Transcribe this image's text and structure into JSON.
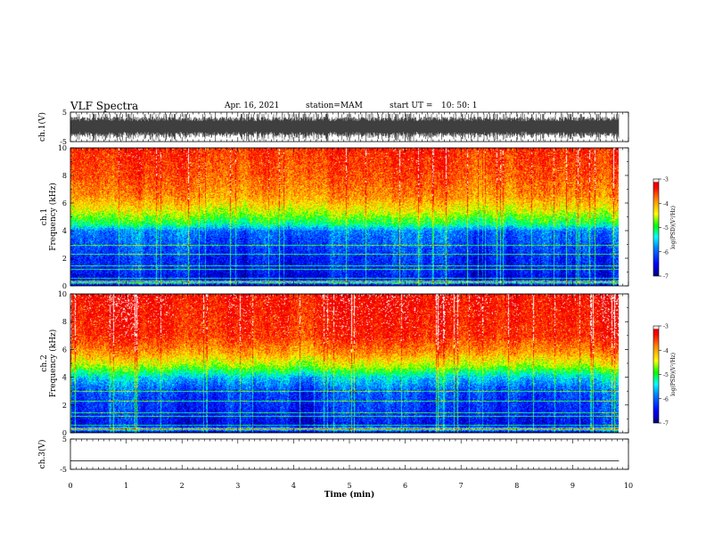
{
  "header": {
    "title": "VLF Spectra",
    "date": "Apr. 16, 2021",
    "station": "station=MAM",
    "start_label": "start  UT  =",
    "start_time": "10: 50: 1"
  },
  "chart_data": {
    "type": "heatmap",
    "x_axis": {
      "label": "Time  (min)",
      "range": [
        0,
        10
      ],
      "ticks": [
        "0",
        "1",
        "2",
        "3",
        "4",
        "5",
        "6",
        "7",
        "8",
        "9",
        "10"
      ],
      "data_end": 9.83
    },
    "panels": [
      {
        "id": "ch1-waveform",
        "type": "line",
        "ylabel": "ch.1(V)",
        "ylim": [
          -5,
          5
        ],
        "yticks": [
          "5",
          "-5"
        ],
        "description_values": {
          "amplitude_range_V": [
            -3.5,
            3.5
          ]
        }
      },
      {
        "id": "ch1-spectrogram",
        "type": "heatmap",
        "ylabel_line1": "ch.1",
        "ylabel_line2": "Frequency  (kHz)",
        "ylim": [
          0,
          10
        ],
        "yticks": [
          "0",
          "2",
          "4",
          "6",
          "8",
          "10"
        ],
        "level_profile": [
          [
            0,
            -7.2
          ],
          [
            0.3,
            -5.0
          ],
          [
            0.5,
            -6.6
          ],
          [
            1.0,
            -6.4
          ],
          [
            2.0,
            -6.3
          ],
          [
            3.0,
            -6.1
          ],
          [
            4.0,
            -5.9
          ],
          [
            4.5,
            -5.1
          ],
          [
            5.5,
            -4.4
          ],
          [
            6.5,
            -3.9
          ],
          [
            8.0,
            -3.6
          ],
          [
            10.0,
            -3.4
          ]
        ],
        "colorbar": {
          "label": "log(PSD)(V²/Hz)",
          "range": [
            -7,
            -3
          ],
          "ticks": [
            "-3",
            "-4",
            "-5",
            "-6",
            "-7"
          ]
        }
      },
      {
        "id": "ch2-spectrogram",
        "type": "heatmap",
        "ylabel_line1": "ch.2",
        "ylabel_line2": "Frequency  (kHz)",
        "ylim": [
          0,
          10
        ],
        "yticks": [
          "0",
          "2",
          "4",
          "6",
          "8",
          "10"
        ],
        "level_profile": [
          [
            0,
            -7.2
          ],
          [
            0.3,
            -5.0
          ],
          [
            0.5,
            -6.5
          ],
          [
            1.5,
            -6.3
          ],
          [
            3.0,
            -6.1
          ],
          [
            4.0,
            -5.5
          ],
          [
            4.8,
            -4.6
          ],
          [
            5.8,
            -3.9
          ],
          [
            7.0,
            -3.4
          ],
          [
            10.0,
            -3.2
          ]
        ],
        "colorbar": {
          "label": "log(PSD)(V²/Hz)",
          "range": [
            -7,
            -3
          ],
          "ticks": [
            "-3",
            "-4",
            "-5",
            "-6",
            "-7"
          ]
        }
      },
      {
        "id": "ch3-waveform",
        "type": "line",
        "ylabel": "ch.3(V)",
        "ylim": [
          -5,
          5
        ],
        "yticks": [
          "5",
          "-5"
        ],
        "flat_value": -2.2
      }
    ],
    "colormap": [
      "#000080",
      "#0000ff",
      "#00ffff",
      "#00ff00",
      "#ffff00",
      "#ff8000",
      "#ff0000",
      "#ffffff"
    ]
  }
}
